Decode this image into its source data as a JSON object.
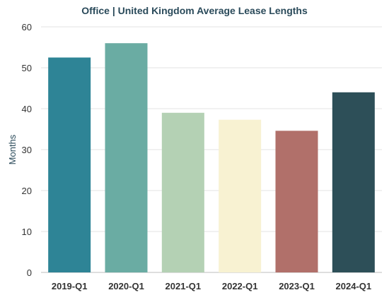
{
  "chart_data": {
    "type": "bar",
    "title": "Office | United Kingdom Average Lease Lengths",
    "xlabel": "",
    "ylabel": "Months",
    "ylim": [
      0,
      60
    ],
    "yticks": [
      0,
      10,
      20,
      30,
      40,
      50,
      60
    ],
    "grid": true,
    "categories": [
      "2019-Q1",
      "2020-Q1",
      "2021-Q1",
      "2022-Q1",
      "2023-Q1",
      "2024-Q1"
    ],
    "values": [
      52.5,
      56,
      39,
      37.3,
      34.6,
      44
    ],
    "colors": [
      "#2e8496",
      "#6aaca3",
      "#b4d1b4",
      "#f8f2d2",
      "#b1706a",
      "#2d4f58"
    ]
  }
}
